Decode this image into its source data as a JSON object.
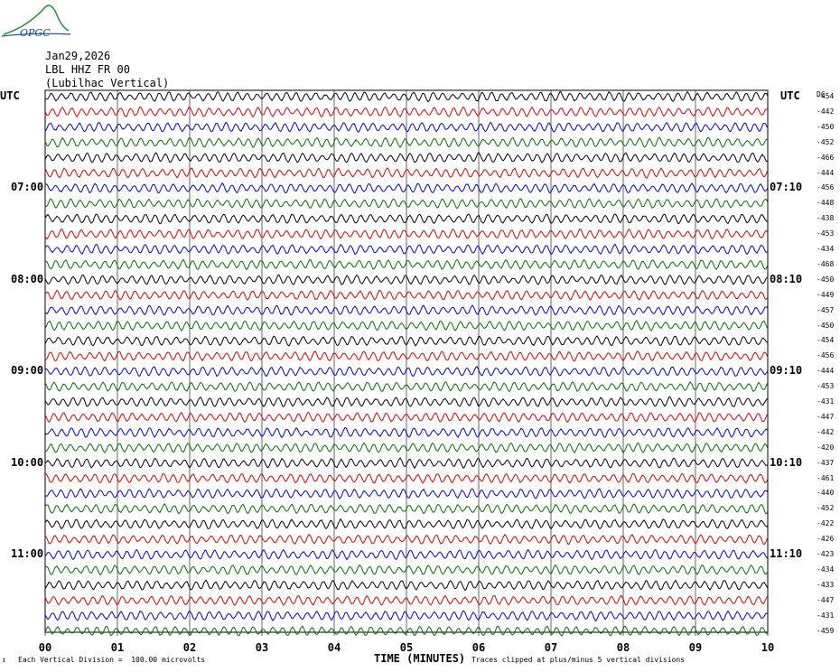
{
  "logo": {
    "text": "OPGC"
  },
  "header": {
    "date": "Jan29,2026",
    "station": "LBL HHZ FR 00",
    "location": "(Lubilhac Vertical)"
  },
  "utc_left": "UTC",
  "utc_right": "UTC",
  "dc_header": "DC",
  "footer": {
    "scale_mark": "↕",
    "scale": "Each Vertical Division =  100.00 microvolts",
    "clip": "Traces clipped at plus/minus 5 vertical divisions",
    "xlabel": "TIME (MINUTES)"
  },
  "chart_data": {
    "type": "line",
    "subtype": "helicorder",
    "xlabel": "TIME (MINUTES)",
    "x_ticks": [
      "00",
      "01",
      "02",
      "03",
      "04",
      "05",
      "06",
      "07",
      "08",
      "09",
      "10"
    ],
    "xlim": [
      0,
      10
    ],
    "trace_count": 36,
    "minutes_per_trace": 10,
    "trace_colors": [
      "#000000",
      "#e00000",
      "#0000e0",
      "#007000"
    ],
    "left_time_labels": [
      {
        "trace": 6,
        "label": "07:00"
      },
      {
        "trace": 12,
        "label": "08:00"
      },
      {
        "trace": 18,
        "label": "09:00"
      },
      {
        "trace": 24,
        "label": "10:00"
      },
      {
        "trace": 30,
        "label": "11:00"
      }
    ],
    "right_time_labels": [
      {
        "trace": 6,
        "label": "07:10"
      },
      {
        "trace": 12,
        "label": "08:10"
      },
      {
        "trace": 18,
        "label": "09:10"
      },
      {
        "trace": 24,
        "label": "10:10"
      },
      {
        "trace": 30,
        "label": "11:10"
      }
    ],
    "dc_offsets": [
      "-454",
      "-442",
      "-450",
      "-452",
      "-466",
      "-444",
      "-456",
      "-448",
      "-438",
      "-453",
      "-434",
      "-468",
      "-450",
      "-449",
      "-457",
      "-450",
      "-454",
      "-456",
      "-444",
      "-453",
      "-431",
      "-447",
      "-442",
      "-420",
      "-437",
      "-461",
      "-440",
      "-452",
      "-422",
      "-426",
      "-423",
      "-434",
      "-433",
      "-447",
      "-431",
      "-459"
    ]
  }
}
